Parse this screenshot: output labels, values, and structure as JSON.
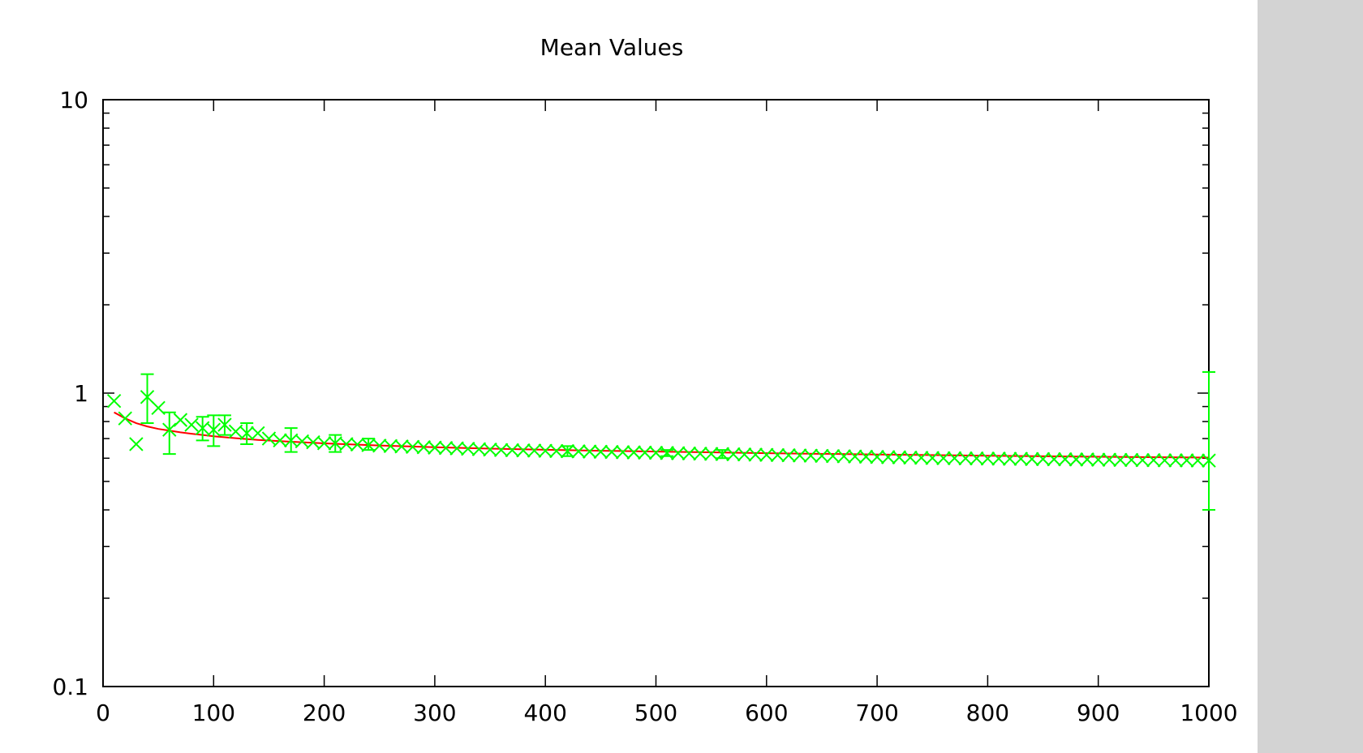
{
  "chart_data": {
    "type": "scatter",
    "title": "Mean Values",
    "xlabel": "",
    "ylabel": "",
    "xlim": [
      0,
      1000
    ],
    "ylim": [
      0.1,
      10
    ],
    "yscale": "log",
    "grid": false,
    "x_ticks": [
      0,
      100,
      200,
      300,
      400,
      500,
      600,
      700,
      800,
      900,
      1000
    ],
    "x_tick_labels": [
      "0",
      "100",
      "200",
      "300",
      "400",
      "500",
      "600",
      "700",
      "800",
      "900",
      "1000"
    ],
    "y_tick_labels": [
      {
        "value": 0.1,
        "label": "0.1"
      },
      {
        "value": 1,
        "label": "1"
      },
      {
        "value": 10,
        "label": "10"
      }
    ],
    "colors": {
      "points": "#00ff00",
      "fit": "#ff0000",
      "axes": "#000000",
      "side_panel": "#d3d3d3"
    },
    "series": [
      {
        "type": "points_with_errorbars",
        "x": [
          10,
          20,
          30,
          40,
          50,
          60,
          70,
          80,
          90,
          100,
          110,
          120,
          130,
          140,
          150,
          160,
          170,
          180,
          190,
          200,
          210,
          220,
          230,
          240,
          250,
          260,
          270,
          280,
          290,
          300,
          310,
          320,
          330,
          340,
          350,
          360,
          370,
          380,
          390,
          400,
          410,
          420,
          430,
          440,
          450,
          460,
          470,
          480,
          490,
          500,
          510,
          520,
          530,
          540,
          550,
          560,
          570,
          580,
          590,
          600,
          610,
          620,
          630,
          640,
          650,
          660,
          670,
          680,
          690,
          700,
          710,
          720,
          730,
          740,
          750,
          760,
          770,
          780,
          790,
          800,
          810,
          820,
          830,
          840,
          850,
          860,
          870,
          880,
          890,
          900,
          910,
          920,
          930,
          940,
          950,
          960,
          970,
          980,
          990,
          1000
        ],
        "y": [
          0.94,
          0.82,
          0.67,
          0.97,
          0.89,
          0.75,
          0.81,
          0.78,
          0.76,
          0.75,
          0.78,
          0.74,
          0.73,
          0.73,
          0.7,
          0.69,
          0.69,
          0.685,
          0.68,
          0.675,
          0.675,
          0.67,
          0.668,
          0.665,
          0.662,
          0.66,
          0.658,
          0.656,
          0.654,
          0.652,
          0.65,
          0.648,
          0.646,
          0.644,
          0.642,
          0.64,
          0.639,
          0.638,
          0.637,
          0.636,
          0.635,
          0.634,
          0.633,
          0.632,
          0.631,
          0.63,
          0.629,
          0.628,
          0.627,
          0.626,
          0.625,
          0.624,
          0.623,
          0.622,
          0.621,
          0.62,
          0.619,
          0.618,
          0.617,
          0.616,
          0.615,
          0.614,
          0.613,
          0.612,
          0.611,
          0.61,
          0.609,
          0.608,
          0.607,
          0.606,
          0.605,
          0.604,
          0.603,
          0.602,
          0.601,
          0.6,
          0.6,
          0.599,
          0.599,
          0.598,
          0.598,
          0.597,
          0.597,
          0.596,
          0.596,
          0.595,
          0.595,
          0.594,
          0.594,
          0.593,
          0.593,
          0.592,
          0.592,
          0.591,
          0.591,
          0.59,
          0.59,
          0.59,
          0.589,
          0.589
        ],
        "errors": [
          {
            "x": 40,
            "low": 0.79,
            "high": 1.16
          },
          {
            "x": 60,
            "low": 0.62,
            "high": 0.86
          },
          {
            "x": 90,
            "low": 0.69,
            "high": 0.83
          },
          {
            "x": 100,
            "low": 0.66,
            "high": 0.84
          },
          {
            "x": 110,
            "low": 0.72,
            "high": 0.84
          },
          {
            "x": 130,
            "low": 0.67,
            "high": 0.79
          },
          {
            "x": 170,
            "low": 0.63,
            "high": 0.76
          },
          {
            "x": 210,
            "low": 0.63,
            "high": 0.72
          },
          {
            "x": 240,
            "low": 0.64,
            "high": 0.7
          },
          {
            "x": 420,
            "low": 0.61,
            "high": 0.66
          },
          {
            "x": 510,
            "low": 0.61,
            "high": 0.64
          },
          {
            "x": 560,
            "low": 0.6,
            "high": 0.64
          },
          {
            "x": 1000,
            "low": 0.4,
            "high": 1.18
          }
        ]
      },
      {
        "type": "fit_line",
        "x": [
          10,
          20,
          30,
          40,
          50,
          60,
          70,
          80,
          90,
          100,
          120,
          140,
          160,
          180,
          200,
          250,
          300,
          350,
          400,
          450,
          500,
          600,
          700,
          800,
          900,
          1000
        ],
        "y": [
          0.86,
          0.82,
          0.79,
          0.77,
          0.755,
          0.745,
          0.735,
          0.727,
          0.72,
          0.713,
          0.702,
          0.693,
          0.686,
          0.68,
          0.674,
          0.663,
          0.654,
          0.647,
          0.641,
          0.636,
          0.632,
          0.624,
          0.618,
          0.612,
          0.607,
          0.603
        ]
      }
    ]
  }
}
